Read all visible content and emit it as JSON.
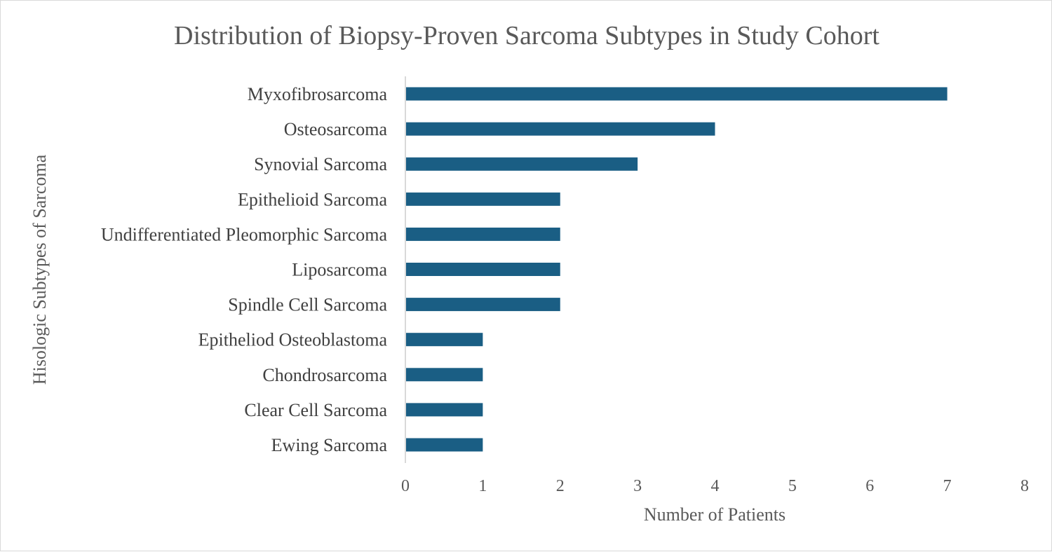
{
  "chart_data": {
    "type": "bar",
    "orientation": "horizontal",
    "title": "Distribution of Biopsy-Proven Sarcoma Subtypes in Study Cohort",
    "xlabel": "Number of Patients",
    "ylabel": "Hisologic Subtypes of Sarcoma",
    "categories": [
      "Myxofibrosarcoma",
      "Osteosarcoma",
      "Synovial Sarcoma",
      "Epithelioid Sarcoma",
      "Undifferentiated Pleomorphic Sarcoma",
      "Liposarcoma",
      "Spindle Cell Sarcoma",
      "Epitheliod Osteoblastoma",
      "Chondrosarcoma",
      "Clear Cell Sarcoma",
      "Ewing Sarcoma"
    ],
    "values": [
      7,
      4,
      3,
      2,
      2,
      2,
      2,
      1,
      1,
      1,
      1
    ],
    "xlim": [
      0,
      8
    ],
    "xticks": [
      "0",
      "1",
      "2",
      "3",
      "4",
      "5",
      "6",
      "7",
      "8"
    ],
    "bar_color": "#1a5e84",
    "grid": false,
    "legend": "none"
  }
}
